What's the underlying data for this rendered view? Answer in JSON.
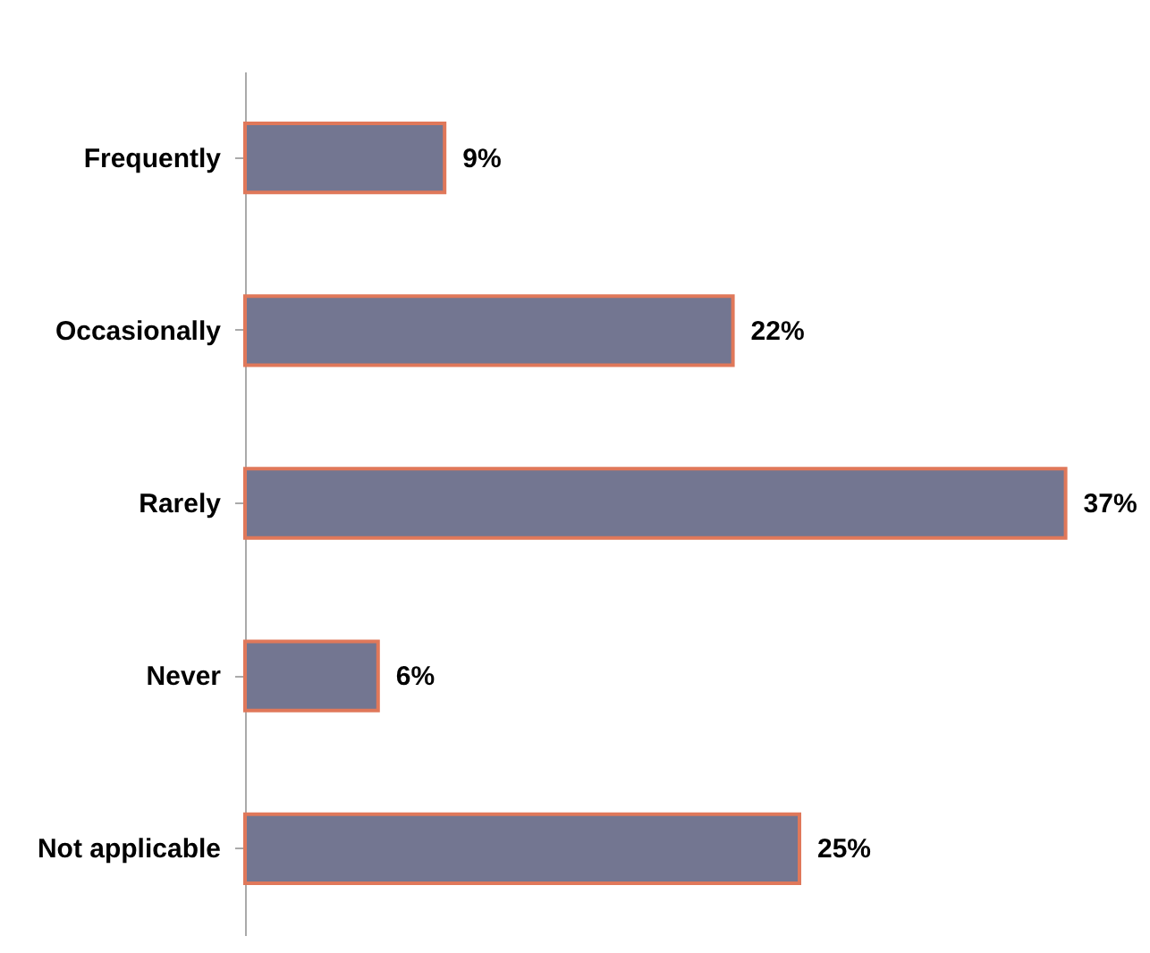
{
  "chart_data": {
    "type": "bar",
    "orientation": "horizontal",
    "categories": [
      "Frequently",
      "Occasionally",
      "Rarely",
      "Never",
      "Not applicable"
    ],
    "values": [
      9,
      22,
      37,
      6,
      25
    ],
    "value_labels": [
      "9%",
      "22%",
      "37%",
      "6%",
      "25%"
    ],
    "color": "#737691",
    "grid": false,
    "tick_labels": "y"
  }
}
